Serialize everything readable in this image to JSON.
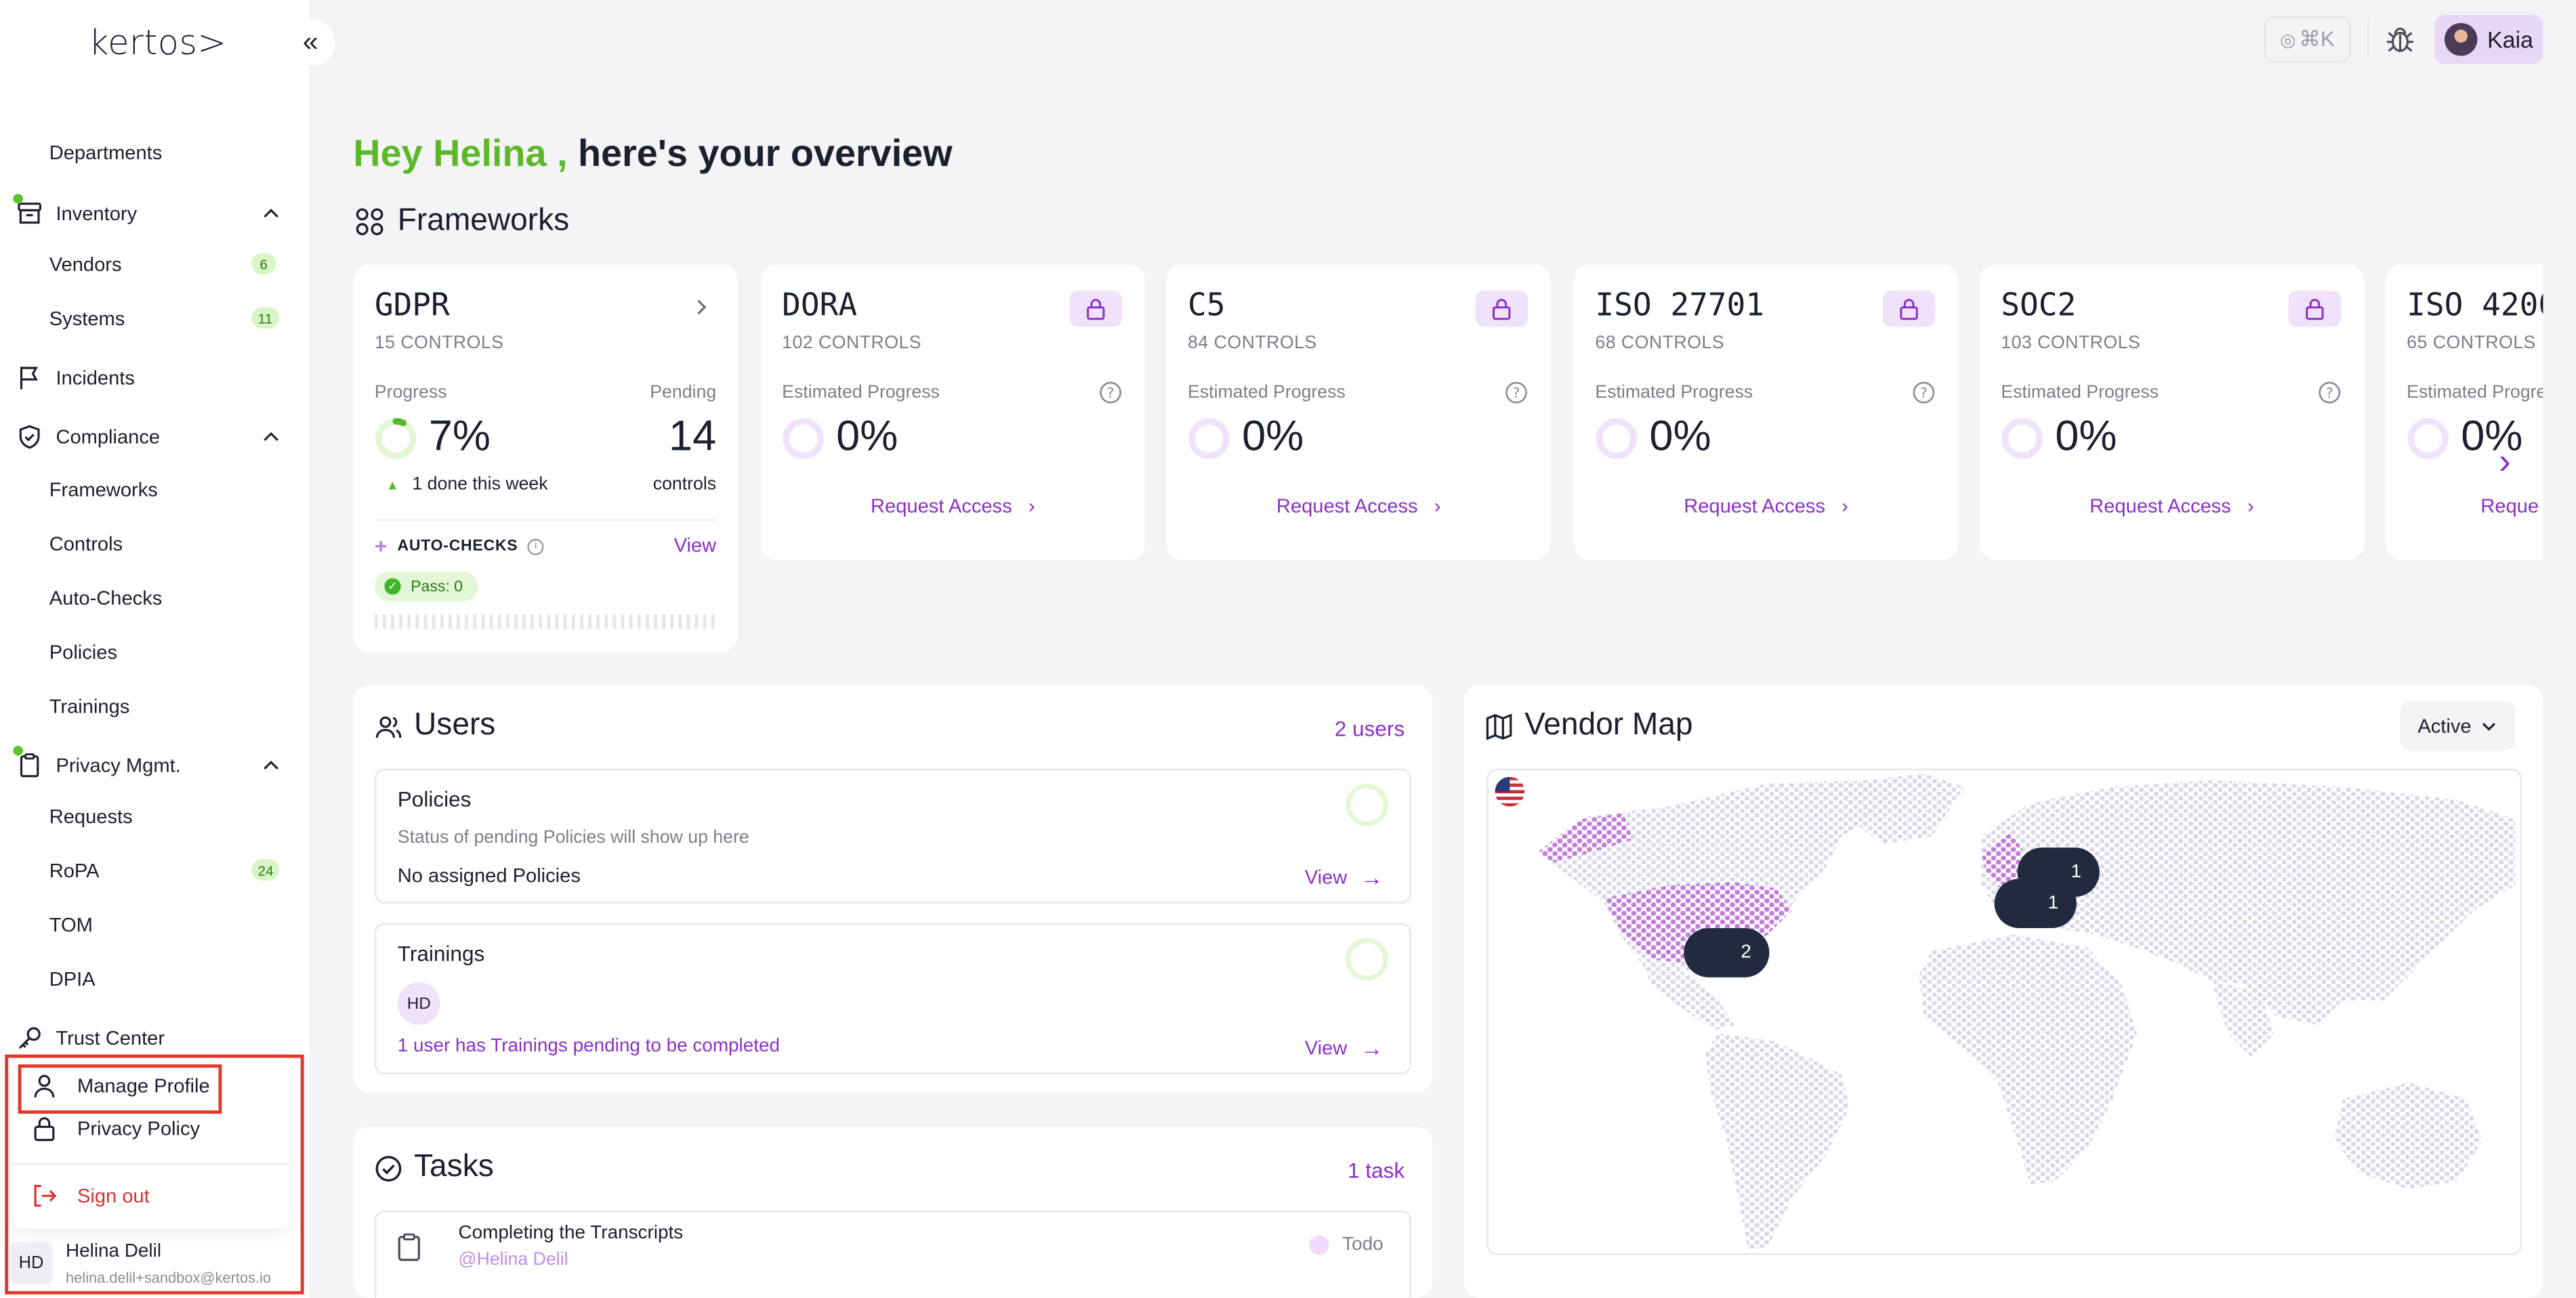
{
  "app": {
    "logo": "kertos>",
    "collapse_icon": "«"
  },
  "sidebar": {
    "departments": "Departments",
    "inventory": "Inventory",
    "vendors": "Vendors",
    "vendors_count": "6",
    "systems": "Systems",
    "systems_count": "11",
    "incidents": "Incidents",
    "compliance": "Compliance",
    "frameworks": "Frameworks",
    "controls": "Controls",
    "auto_checks": "Auto-Checks",
    "policies": "Policies",
    "trainings": "Trainings",
    "privacy": "Privacy Mgmt.",
    "requests": "Requests",
    "ropa": "RoPA",
    "ropa_count": "24",
    "tom": "TOM",
    "dpia": "DPIA",
    "trust_center": "Trust Center"
  },
  "profile_menu": {
    "manage_profile": "Manage Profile",
    "privacy_policy": "Privacy Policy",
    "sign_out": "Sign out"
  },
  "user": {
    "initials": "HD",
    "name": "Helina Delil",
    "email": "helina.delil+sandbox@kertos.io"
  },
  "topbar": {
    "command_shortcut": "⌘K",
    "profile_name": "Kaia"
  },
  "greeting": {
    "hey": "Hey Helina ,",
    "rest": " here's your overview"
  },
  "frameworks": {
    "title": "Frameworks",
    "gdpr": {
      "name": "GDPR",
      "controls": "15 CONTROLS",
      "progress_label": "Progress",
      "progress_value": "7%",
      "progress_fraction": 0.07,
      "pending_label": "Pending",
      "pending_value": "14",
      "pending_unit": "controls",
      "done_week": "1 done this week",
      "auto_checks_label": "AUTO-CHECKS",
      "auto_checks_view": "View",
      "pass_label": "Pass: 0"
    },
    "locked": [
      {
        "name": "DORA",
        "controls": "102 CONTROLS",
        "est_label": "Estimated Progress",
        "value": "0%",
        "request": "Request Access"
      },
      {
        "name": "C5",
        "controls": "84 CONTROLS",
        "est_label": "Estimated Progress",
        "value": "0%",
        "request": "Request Access"
      },
      {
        "name": "ISO 27701",
        "controls": "68 CONTROLS",
        "est_label": "Estimated Progress",
        "value": "0%",
        "request": "Request Access"
      },
      {
        "name": "SOC2",
        "controls": "103 CONTROLS",
        "est_label": "Estimated Progress",
        "value": "0%",
        "request": "Request Access"
      },
      {
        "name": "ISO 4200",
        "controls": "65 CONTROLS",
        "est_label": "Estimated Progre",
        "value": "0%",
        "request": "Reque"
      }
    ]
  },
  "users_card": {
    "title": "Users",
    "count": "2 users",
    "policies_title": "Policies",
    "policies_desc": "Status of pending Policies will show up here",
    "policies_none": "No assigned Policies",
    "policies_view": "View",
    "trainings_title": "Trainings",
    "trainings_initials": "HD",
    "trainings_pending": "1 user has Trainings pending to be completed",
    "trainings_view": "View"
  },
  "tasks_card": {
    "title": "Tasks",
    "count": "1 task",
    "task_name": "Completing the Transcripts",
    "task_user": "@Helina Delil",
    "task_status": "Todo"
  },
  "vendor_map": {
    "title": "Vendor Map",
    "filter": "Active",
    "clusters": [
      {
        "label": "1",
        "region": "central-europe"
      },
      {
        "label": "1",
        "region": "western-europe"
      },
      {
        "label": "2",
        "region": "north-america"
      }
    ]
  },
  "colors": {
    "accent_purple": "#8b2fc9",
    "accent_green": "#5cb82a",
    "danger": "#d83232",
    "highlight": "#e0392b"
  }
}
